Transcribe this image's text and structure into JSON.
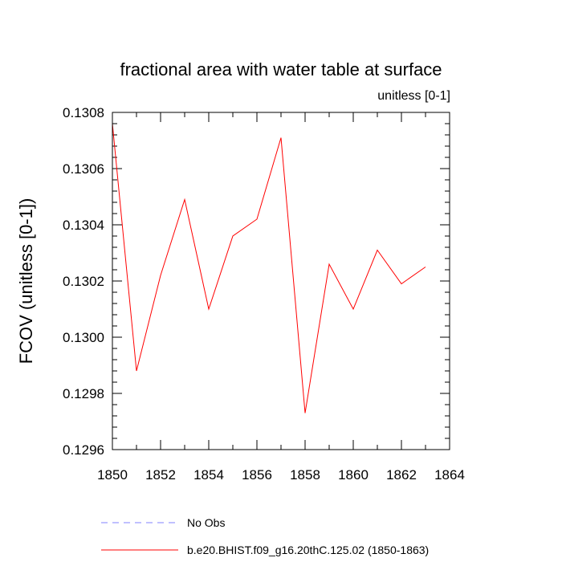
{
  "chart_data": {
    "type": "line",
    "title": "fractional area with water table at surface",
    "subtitle": "unitless [0-1]",
    "ylabel": "FCOV  (unitless [0-1])",
    "xlabel": "",
    "xlim": [
      1850,
      1864
    ],
    "ylim": [
      0.1296,
      0.1308
    ],
    "xticks": [
      1850,
      1852,
      1854,
      1856,
      1858,
      1860,
      1862,
      1864
    ],
    "xtick_labels": [
      "1850",
      "1852",
      "1854",
      "1856",
      "1858",
      "1860",
      "1862",
      "1864"
    ],
    "xminor_step": 1,
    "yticks": [
      0.1296,
      0.1298,
      0.13,
      0.1302,
      0.1304,
      0.1306,
      0.1308
    ],
    "ytick_labels": [
      "0.1296",
      "0.1298",
      "0.1300",
      "0.1302",
      "0.1304",
      "0.1306",
      "0.1308"
    ],
    "yminor_step": 4e-05,
    "grid": false,
    "x": [
      1850,
      1851,
      1852,
      1853,
      1854,
      1855,
      1856,
      1857,
      1858,
      1859,
      1860,
      1861,
      1862,
      1863
    ],
    "series": [
      {
        "name": "b.e20.BHIST.f09_g16.20thC.125.02 (1850-1863)",
        "color": "#ff0000",
        "dash": false,
        "values": [
          0.13076,
          0.12988,
          0.13022,
          0.13049,
          0.1301,
          0.13036,
          0.13042,
          0.13071,
          0.12973,
          0.13026,
          0.1301,
          0.13031,
          0.13019,
          0.13025
        ]
      }
    ],
    "legend": {
      "placement": "bottom-left",
      "entries": [
        {
          "label": "No Obs",
          "color": "#8080ff",
          "dash": true
        },
        {
          "label": "b.e20.BHIST.f09_g16.20thC.125.02 (1850-1863)",
          "color": "#ff0000",
          "dash": false
        }
      ]
    }
  }
}
